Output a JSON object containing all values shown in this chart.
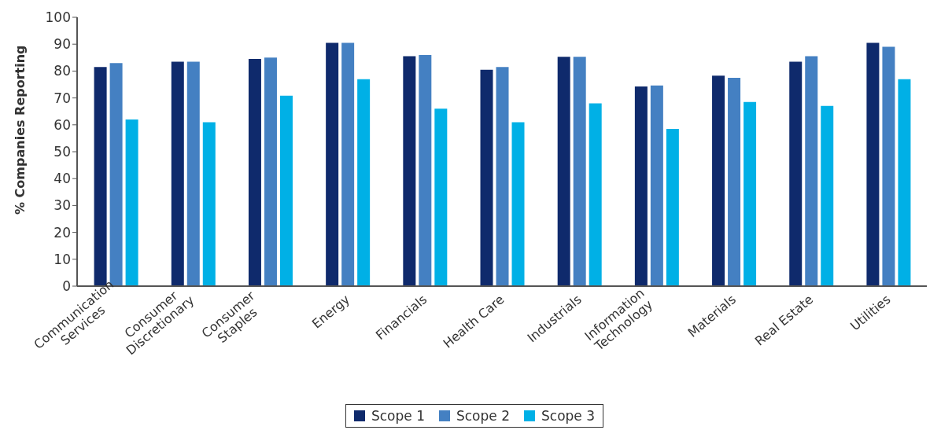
{
  "chart_data": {
    "type": "bar",
    "ylabel": "% Companies Reporting",
    "categories": [
      "Communication Services",
      "Consumer Discretionary",
      "Consumer Staples",
      "Energy",
      "Financials",
      "Health Care",
      "Industrials",
      "Information Technology",
      "Materials",
      "Real Estate",
      "Utilities"
    ],
    "series": [
      {
        "name": "Scope 1",
        "color": "#0f2a6c",
        "values": [
          81.5,
          83.5,
          84.5,
          90.5,
          85.5,
          80.5,
          85.3,
          74.3,
          78.3,
          83.5,
          90.5
        ]
      },
      {
        "name": "Scope 2",
        "color": "#4480c2",
        "values": [
          83,
          83.5,
          85,
          90.5,
          86,
          81.5,
          85.3,
          74.6,
          77.5,
          85.5,
          89
        ]
      },
      {
        "name": "Scope 3",
        "color": "#00b0e6",
        "values": [
          62,
          61,
          70.8,
          77,
          66,
          61,
          68,
          58.5,
          68.5,
          67,
          77
        ]
      }
    ],
    "ylim": [
      0,
      100
    ],
    "yticks": [
      0,
      10,
      20,
      30,
      40,
      50,
      60,
      70,
      80,
      90,
      100
    ],
    "grid": false,
    "legend": "bottom"
  }
}
